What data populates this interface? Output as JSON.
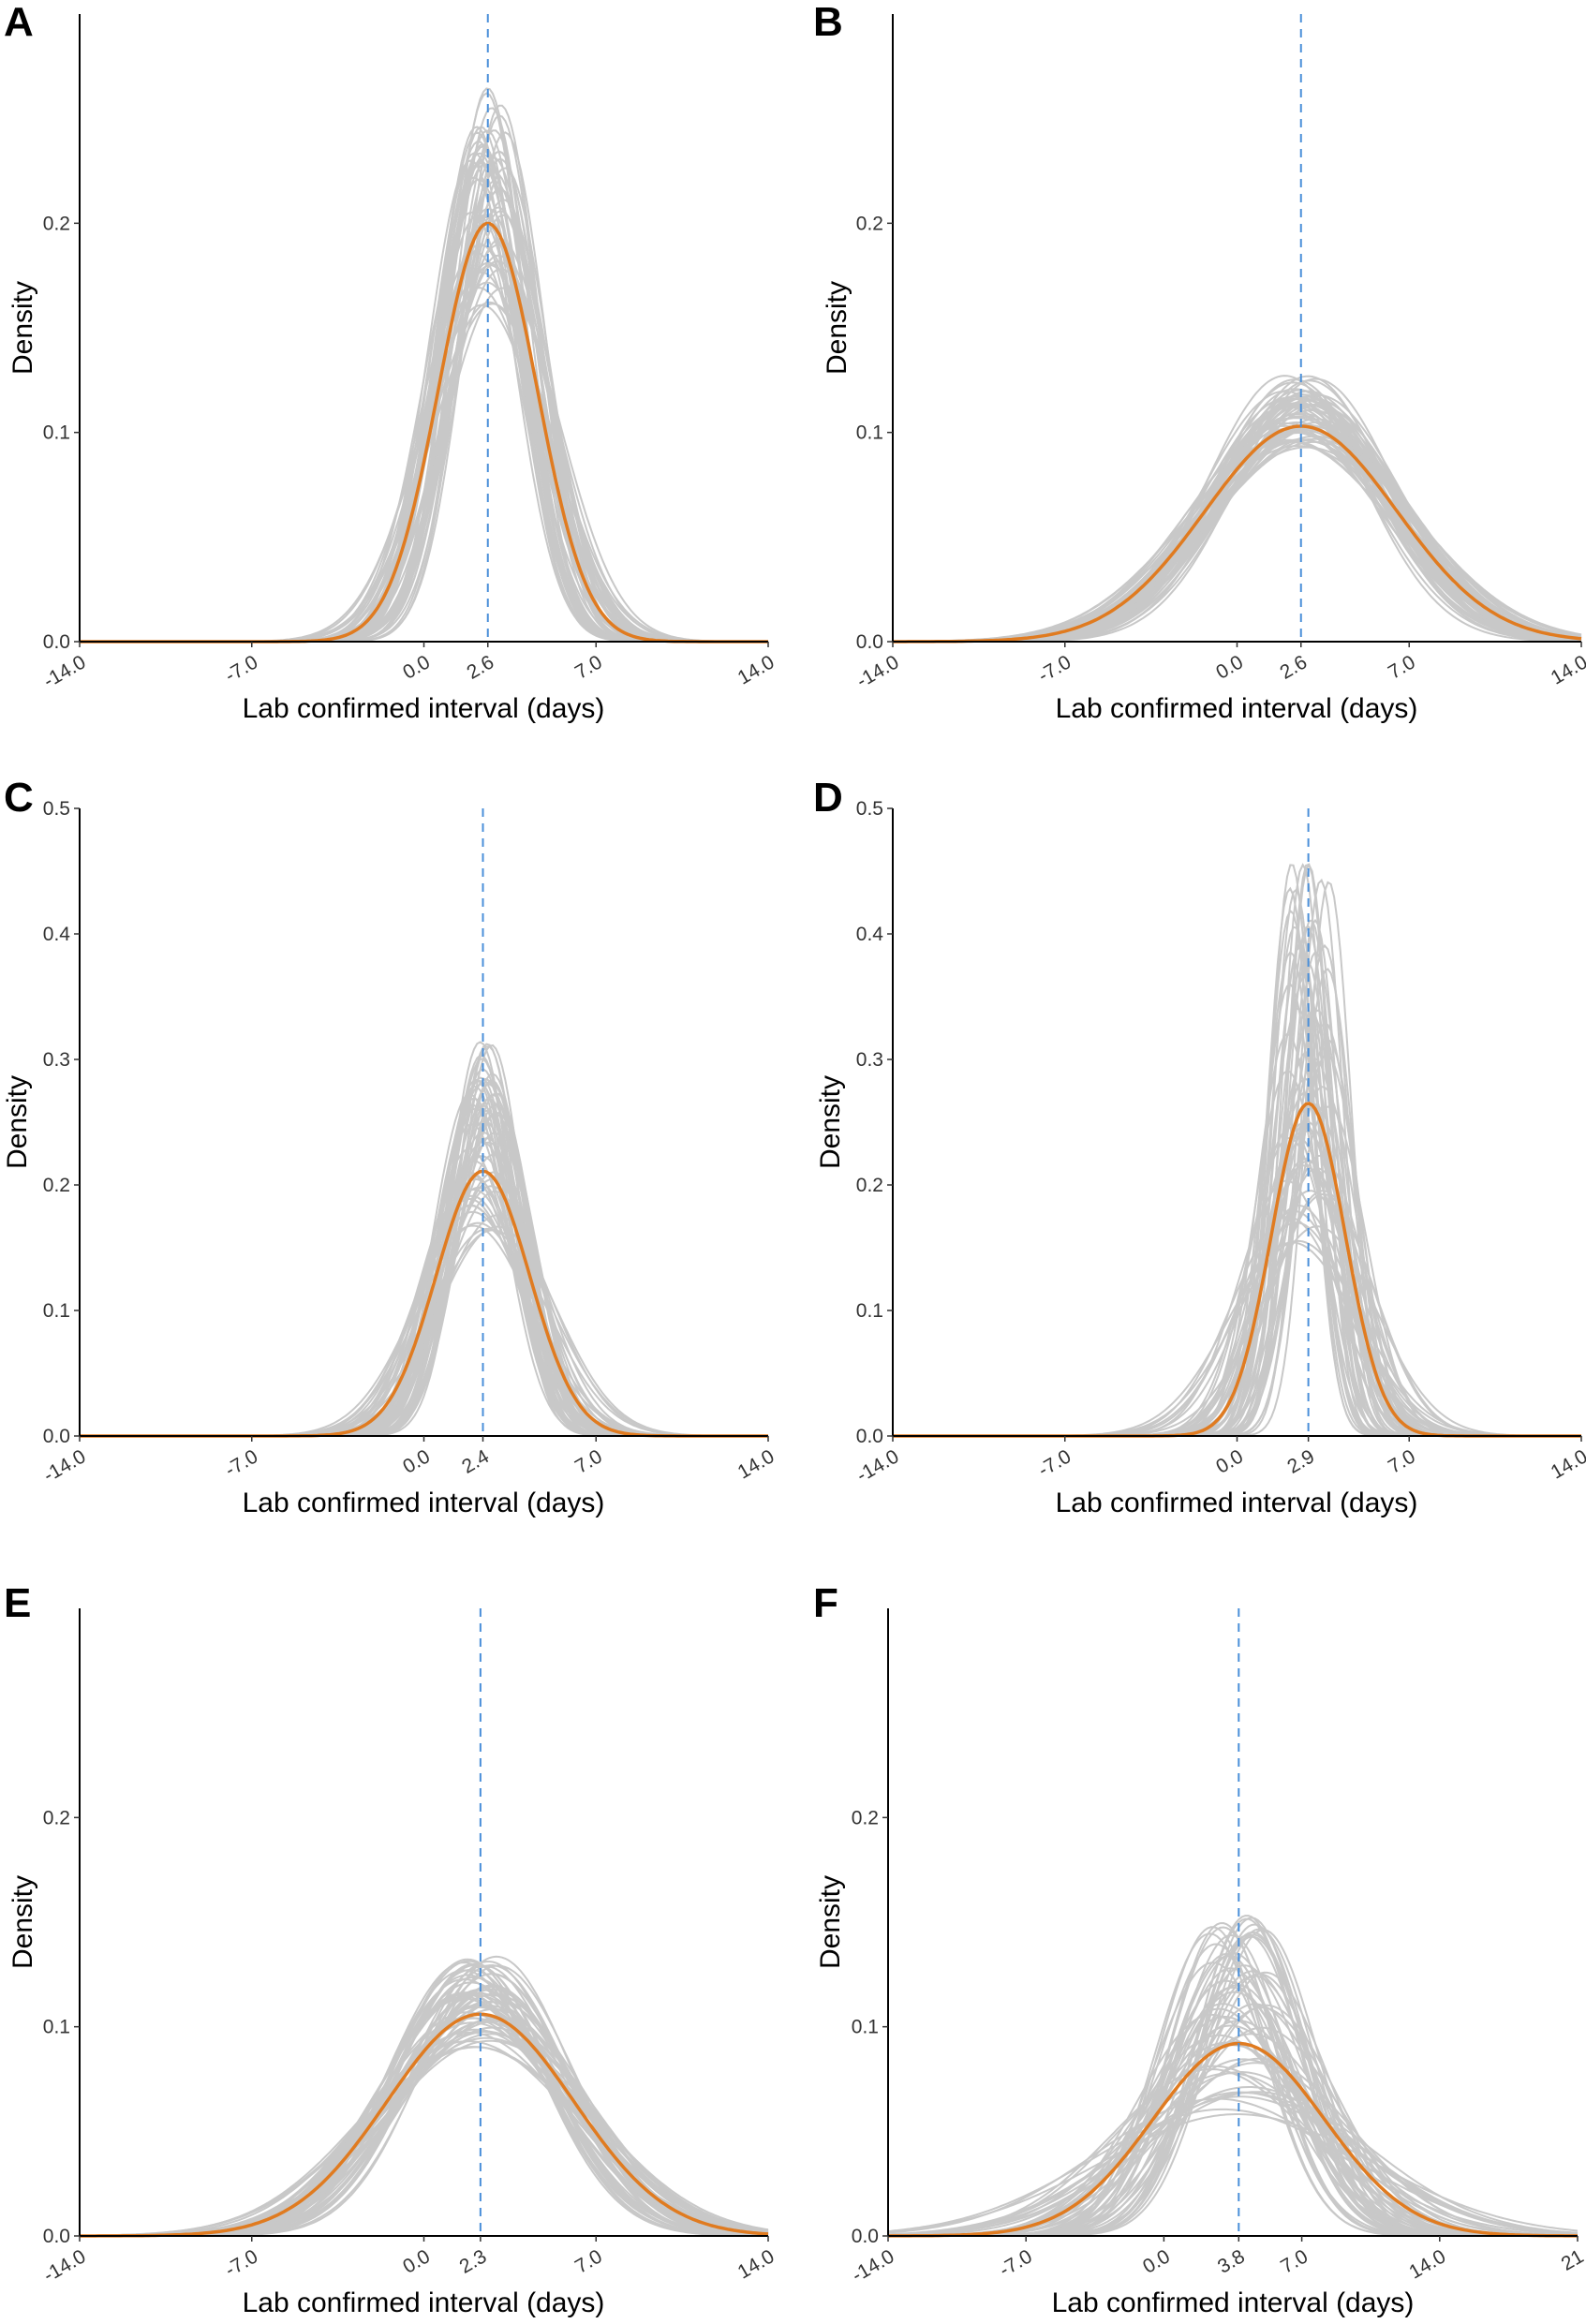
{
  "figure": {
    "mean_line_color": "#e07b20",
    "sample_line_color": "#c8c8c8",
    "reference_line_color": "#4a8fd9"
  },
  "chart_data": [
    {
      "panel": "A",
      "type": "line",
      "xlabel": "Lab confirmed interval (days)",
      "ylabel": "Density",
      "xlim": [
        -14,
        14
      ],
      "ylim": [
        0,
        0.3
      ],
      "x_ticks": [
        "-14.0",
        "-7.0",
        "0.0",
        "2.6",
        "7.0",
        "14.0"
      ],
      "x_tick_values": [
        -14,
        -7,
        0,
        2.6,
        7,
        14
      ],
      "y_ticks": [
        "0.0",
        "0.1",
        "0.2"
      ],
      "y_tick_values": [
        0,
        0.1,
        0.2
      ],
      "reference_x": 2.6,
      "mean_curve": {
        "name": "mean",
        "type": "normal",
        "mu": 2.6,
        "sigma": 2.0,
        "peak": 0.2
      },
      "samples": {
        "name": "bootstrap samples",
        "count": 60,
        "peak_range": [
          0.16,
          0.265
        ],
        "mu_spread": 0.7
      }
    },
    {
      "panel": "B",
      "type": "line",
      "xlabel": "Lab confirmed interval (days)",
      "ylabel": "Density",
      "xlim": [
        -14,
        14
      ],
      "ylim": [
        0,
        0.3
      ],
      "x_ticks": [
        "-14.0",
        "-7.0",
        "0.0",
        "2.6",
        "7.0",
        "14.0"
      ],
      "x_tick_values": [
        -14,
        -7,
        0,
        2.6,
        7,
        14
      ],
      "y_ticks": [
        "0.0",
        "0.1",
        "0.2"
      ],
      "y_tick_values": [
        0,
        0.1,
        0.2
      ],
      "reference_x": 2.6,
      "mean_curve": {
        "name": "mean",
        "type": "normal",
        "mu": 2.6,
        "sigma": 3.9,
        "peak": 0.103
      },
      "samples": {
        "name": "bootstrap samples",
        "count": 60,
        "peak_range": [
          0.092,
          0.128
        ],
        "mu_spread": 0.7
      }
    },
    {
      "panel": "C",
      "type": "line",
      "xlabel": "Lab confirmed interval (days)",
      "ylabel": "Density",
      "xlim": [
        -14,
        14
      ],
      "ylim": [
        0,
        0.5
      ],
      "x_ticks": [
        "-14.0",
        "-7.0",
        "0.0",
        "2.4",
        "7.0",
        "14.0"
      ],
      "x_tick_values": [
        -14,
        -7,
        0,
        2.4,
        7,
        14
      ],
      "y_ticks": [
        "0.0",
        "0.1",
        "0.2",
        "0.3",
        "0.4",
        "0.5"
      ],
      "y_tick_values": [
        0,
        0.1,
        0.2,
        0.3,
        0.4,
        0.5
      ],
      "reference_x": 2.4,
      "mean_curve": {
        "name": "mean",
        "type": "normal",
        "mu": 2.4,
        "sigma": 1.9,
        "peak": 0.211
      },
      "samples": {
        "name": "bootstrap samples",
        "count": 60,
        "peak_range": [
          0.16,
          0.315
        ],
        "mu_spread": 0.6
      }
    },
    {
      "panel": "D",
      "type": "line",
      "xlabel": "Lab confirmed interval (days)",
      "ylabel": "Density",
      "xlim": [
        -14,
        14
      ],
      "ylim": [
        0,
        0.5
      ],
      "x_ticks": [
        "-14.0",
        "-7.0",
        "0.0",
        "2.9",
        "7.0",
        "14.0"
      ],
      "x_tick_values": [
        -14,
        -7,
        0,
        2.9,
        7,
        14
      ],
      "y_ticks": [
        "0.0",
        "0.1",
        "0.2",
        "0.3",
        "0.4",
        "0.5"
      ],
      "y_tick_values": [
        0,
        0.1,
        0.2,
        0.3,
        0.4,
        0.5
      ],
      "reference_x": 2.9,
      "mean_curve": {
        "name": "mean",
        "type": "normal",
        "mu": 2.9,
        "sigma": 1.5,
        "peak": 0.265
      },
      "samples": {
        "name": "bootstrap samples",
        "count": 60,
        "peak_range": [
          0.15,
          0.468
        ],
        "mu_spread": 0.9
      }
    },
    {
      "panel": "E",
      "type": "line",
      "xlabel": "Lab confirmed interval (days)",
      "ylabel": "Density",
      "xlim": [
        -14,
        14
      ],
      "ylim": [
        0,
        0.3
      ],
      "x_ticks": [
        "-14.0",
        "-7.0",
        "0.0",
        "2.3",
        "7.0",
        "14.0"
      ],
      "x_tick_values": [
        -14,
        -7,
        0,
        2.3,
        7,
        14
      ],
      "y_ticks": [
        "0.0",
        "0.1",
        "0.2"
      ],
      "y_tick_values": [
        0,
        0.1,
        0.2
      ],
      "reference_x": 2.3,
      "mean_curve": {
        "name": "mean",
        "type": "normal",
        "mu": 2.3,
        "sigma": 3.8,
        "peak": 0.106
      },
      "samples": {
        "name": "bootstrap samples",
        "count": 60,
        "peak_range": [
          0.09,
          0.134
        ],
        "mu_spread": 0.7
      }
    },
    {
      "panel": "F",
      "type": "line",
      "xlabel": "Lab confirmed interval (days)",
      "ylabel": "Density",
      "xlim": [
        -14,
        21
      ],
      "ylim": [
        0,
        0.3
      ],
      "x_ticks": [
        "-14.0",
        "-7.0",
        "0.0",
        "3.8",
        "7.0",
        "14.0",
        "21"
      ],
      "x_tick_values": [
        -14,
        -7,
        0,
        3.8,
        7,
        14,
        21
      ],
      "y_ticks": [
        "0.0",
        "0.1",
        "0.2"
      ],
      "y_tick_values": [
        0,
        0.1,
        0.2
      ],
      "reference_x": 3.8,
      "mean_curve": {
        "name": "mean",
        "type": "normal",
        "mu": 3.8,
        "sigma": 4.35,
        "peak": 0.092
      },
      "samples": {
        "name": "bootstrap samples",
        "count": 60,
        "peak_range": [
          0.058,
          0.155
        ],
        "mu_spread": 1.5
      }
    }
  ]
}
